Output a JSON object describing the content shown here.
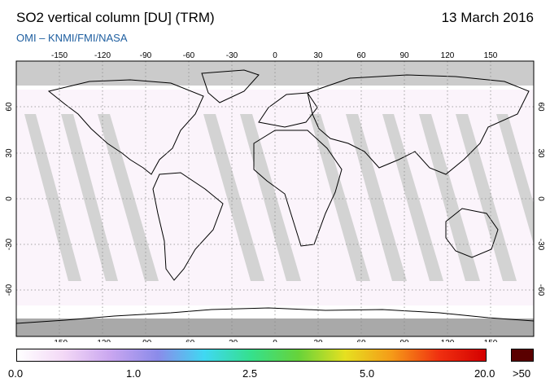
{
  "title": "SO2 vertical column [DU] (TRM)",
  "date": "13 March 2016",
  "credit": "OMI  –  KNMI/FMI/NASA",
  "map": {
    "lon_ticks": [
      "-150",
      "-120",
      "-90",
      "-60",
      "-30",
      "0",
      "30",
      "60",
      "90",
      "120",
      "150"
    ],
    "lat_ticks": [
      "60",
      "30",
      "0",
      "-30",
      "-60"
    ],
    "colors": {
      "ocean": "#ffffff",
      "swath_gap": "#d0d0d0",
      "dark_gap": "#a8a8a8",
      "polar": "#c8c8c8",
      "land_outline": "#000000",
      "grid": "#8a8a8a"
    }
  },
  "colorbar": {
    "labels": [
      "0.0",
      "1.0",
      "2.5",
      "5.0",
      "20.0",
      ">50"
    ],
    "stops": [
      "#ffffff",
      "#f3d8f6",
      "#c9a6f0",
      "#8b8bea",
      "#3fd8f2",
      "#35e08c",
      "#66d33a",
      "#e6e020",
      "#f59a18",
      "#f03010",
      "#d40000"
    ],
    "over_color": "#5a0000"
  }
}
